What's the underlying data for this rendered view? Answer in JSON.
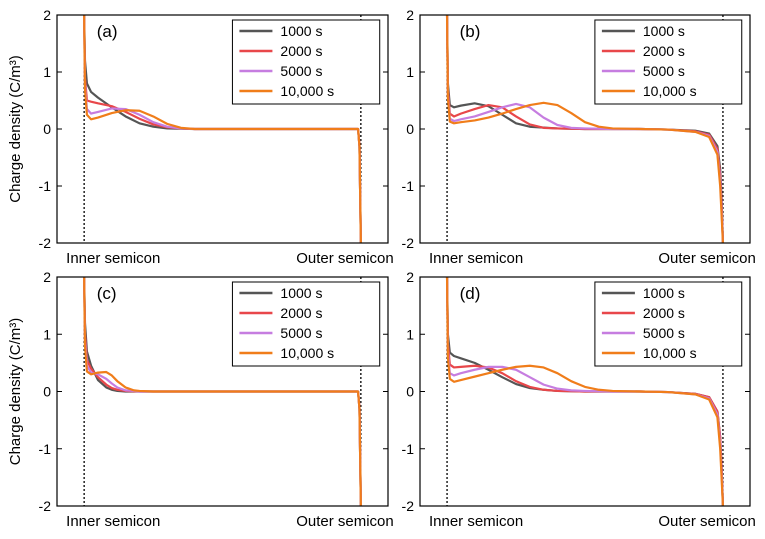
{
  "ylabel": "Charge density (C/m³)",
  "x_ticklabels": [
    "Inner semicon",
    "Outer semicon"
  ],
  "legend": [
    {
      "name": "1000 s",
      "color": "#555555"
    },
    {
      "name": "2000 s",
      "color": "#e8474a"
    },
    {
      "name": "5000 s",
      "color": "#c67de0"
    },
    {
      "name": "10,000 s",
      "color": "#f07d1a"
    }
  ],
  "chart_data": [
    {
      "type": "line",
      "title": "(a)",
      "xlabel": "",
      "ylabel": "Charge density (C/m³)",
      "x_ticklabels": [
        "Inner semicon",
        "Outer semicon"
      ],
      "ylim": [
        -2,
        2
      ],
      "yticks": [
        -2,
        -1,
        0,
        1,
        2
      ],
      "xlim": [
        0,
        1
      ],
      "series": [
        {
          "name": "1000 s",
          "x": [
            0,
            0.003,
            0.01,
            0.025,
            0.05,
            0.1,
            0.15,
            0.2,
            0.25,
            0.3,
            0.4,
            0.5,
            0.6,
            0.7,
            0.8,
            0.9,
            0.96,
            0.99,
            0.995,
            1
          ],
          "y": [
            2,
            1.2,
            0.8,
            0.65,
            0.55,
            0.38,
            0.22,
            0.1,
            0.04,
            0.01,
            0,
            0,
            0,
            0,
            0,
            0,
            0,
            0,
            -0.3,
            -2
          ]
        },
        {
          "name": "2000 s",
          "x": [
            0,
            0.003,
            0.01,
            0.025,
            0.05,
            0.1,
            0.15,
            0.2,
            0.25,
            0.3,
            0.35,
            0.4,
            0.5,
            0.6,
            0.7,
            0.8,
            0.9,
            0.96,
            0.99,
            0.995,
            1
          ],
          "y": [
            2,
            0.9,
            0.5,
            0.48,
            0.45,
            0.4,
            0.3,
            0.18,
            0.08,
            0.03,
            0.01,
            0,
            0,
            0,
            0,
            0,
            0,
            0,
            0,
            -0.3,
            -2
          ]
        },
        {
          "name": "5000 s",
          "x": [
            0,
            0.003,
            0.01,
            0.025,
            0.05,
            0.1,
            0.15,
            0.2,
            0.25,
            0.3,
            0.35,
            0.4,
            0.5,
            0.6,
            0.7,
            0.8,
            0.9,
            0.96,
            0.99,
            0.995,
            1
          ],
          "y": [
            2,
            0.8,
            0.35,
            0.27,
            0.3,
            0.36,
            0.35,
            0.25,
            0.12,
            0.04,
            0.01,
            0,
            0,
            0,
            0,
            0,
            0,
            0,
            0,
            -0.3,
            -2
          ]
        },
        {
          "name": "10,000 s",
          "x": [
            0,
            0.003,
            0.01,
            0.025,
            0.05,
            0.1,
            0.15,
            0.2,
            0.25,
            0.3,
            0.35,
            0.4,
            0.5,
            0.6,
            0.7,
            0.8,
            0.9,
            0.96,
            0.99,
            0.995,
            1
          ],
          "y": [
            2,
            0.7,
            0.25,
            0.17,
            0.2,
            0.28,
            0.33,
            0.32,
            0.22,
            0.09,
            0.02,
            0,
            0,
            0,
            0,
            0,
            0,
            0,
            0,
            -0.3,
            -2
          ]
        }
      ]
    },
    {
      "type": "line",
      "title": "(b)",
      "xlabel": "",
      "ylabel": "",
      "x_ticklabels": [
        "Inner semicon",
        "Outer semicon"
      ],
      "ylim": [
        -2,
        2
      ],
      "yticks": [
        -2,
        -1,
        0,
        1,
        2
      ],
      "xlim": [
        0,
        1
      ],
      "series": [
        {
          "name": "1000 s",
          "x": [
            0,
            0.003,
            0.01,
            0.025,
            0.05,
            0.1,
            0.15,
            0.2,
            0.25,
            0.3,
            0.4,
            0.5,
            0.6,
            0.7,
            0.8,
            0.9,
            0.95,
            0.98,
            0.99,
            0.995,
            1
          ],
          "y": [
            2,
            0.8,
            0.42,
            0.38,
            0.41,
            0.45,
            0.4,
            0.25,
            0.1,
            0.04,
            0.01,
            0,
            0,
            0,
            -0.01,
            -0.03,
            -0.08,
            -0.3,
            -0.7,
            -1.2,
            -2
          ]
        },
        {
          "name": "2000 s",
          "x": [
            0,
            0.003,
            0.01,
            0.025,
            0.05,
            0.1,
            0.15,
            0.2,
            0.25,
            0.3,
            0.35,
            0.4,
            0.5,
            0.6,
            0.7,
            0.8,
            0.9,
            0.95,
            0.98,
            0.99,
            0.995,
            1
          ],
          "y": [
            2,
            0.7,
            0.27,
            0.22,
            0.27,
            0.35,
            0.42,
            0.38,
            0.22,
            0.08,
            0.02,
            0.01,
            0,
            0,
            0,
            -0.01,
            -0.04,
            -0.1,
            -0.35,
            -0.8,
            -1.3,
            -2
          ]
        },
        {
          "name": "5000 s",
          "x": [
            0,
            0.003,
            0.01,
            0.025,
            0.05,
            0.1,
            0.15,
            0.2,
            0.25,
            0.3,
            0.35,
            0.4,
            0.45,
            0.5,
            0.6,
            0.7,
            0.8,
            0.9,
            0.95,
            0.98,
            0.99,
            0.995,
            1
          ],
          "y": [
            2,
            0.6,
            0.18,
            0.14,
            0.17,
            0.22,
            0.3,
            0.38,
            0.44,
            0.38,
            0.2,
            0.07,
            0.02,
            0.01,
            0,
            0,
            -0.01,
            -0.05,
            -0.12,
            -0.4,
            -0.9,
            -1.4,
            -2
          ]
        },
        {
          "name": "10,000 s",
          "x": [
            0,
            0.003,
            0.01,
            0.025,
            0.05,
            0.1,
            0.15,
            0.2,
            0.25,
            0.3,
            0.35,
            0.4,
            0.45,
            0.5,
            0.55,
            0.6,
            0.7,
            0.8,
            0.9,
            0.95,
            0.98,
            0.99,
            0.995,
            1
          ],
          "y": [
            2,
            0.55,
            0.13,
            0.1,
            0.12,
            0.15,
            0.2,
            0.27,
            0.35,
            0.42,
            0.46,
            0.42,
            0.28,
            0.12,
            0.04,
            0.01,
            0,
            -0.01,
            -0.05,
            -0.14,
            -0.45,
            -1.0,
            -1.5,
            -2
          ]
        }
      ]
    },
    {
      "type": "line",
      "title": "(c)",
      "xlabel": "",
      "ylabel": "Charge density (C/m³)",
      "x_ticklabels": [
        "Inner semicon",
        "Outer semicon"
      ],
      "ylim": [
        -2,
        2
      ],
      "yticks": [
        -2,
        -1,
        0,
        1,
        2
      ],
      "xlim": [
        0,
        1
      ],
      "series": [
        {
          "name": "1000 s",
          "x": [
            0,
            0.003,
            0.01,
            0.025,
            0.05,
            0.08,
            0.1,
            0.12,
            0.15,
            0.2,
            0.3,
            0.5,
            0.7,
            0.9,
            0.99,
            0.995,
            1
          ],
          "y": [
            2,
            1.2,
            0.7,
            0.45,
            0.2,
            0.07,
            0.03,
            0.01,
            0,
            0,
            0,
            0,
            0,
            0,
            0,
            -0.3,
            -2
          ]
        },
        {
          "name": "2000 s",
          "x": [
            0,
            0.003,
            0.01,
            0.025,
            0.05,
            0.08,
            0.1,
            0.12,
            0.15,
            0.2,
            0.3,
            0.5,
            0.7,
            0.9,
            0.99,
            0.995,
            1
          ],
          "y": [
            2,
            1.0,
            0.55,
            0.4,
            0.25,
            0.12,
            0.06,
            0.03,
            0.01,
            0,
            0,
            0,
            0,
            0,
            0,
            -0.3,
            -2
          ]
        },
        {
          "name": "5000 s",
          "x": [
            0,
            0.003,
            0.01,
            0.025,
            0.05,
            0.08,
            0.1,
            0.12,
            0.15,
            0.18,
            0.2,
            0.3,
            0.5,
            0.7,
            0.9,
            0.99,
            0.995,
            1
          ],
          "y": [
            2,
            0.9,
            0.45,
            0.33,
            0.3,
            0.22,
            0.14,
            0.07,
            0.02,
            0.01,
            0,
            0,
            0,
            0,
            0,
            0,
            -0.3,
            -2
          ]
        },
        {
          "name": "10,000 s",
          "x": [
            0,
            0.003,
            0.01,
            0.025,
            0.05,
            0.08,
            0.1,
            0.12,
            0.15,
            0.18,
            0.2,
            0.25,
            0.3,
            0.5,
            0.7,
            0.9,
            0.99,
            0.995,
            1
          ],
          "y": [
            2,
            0.8,
            0.35,
            0.3,
            0.33,
            0.34,
            0.28,
            0.18,
            0.07,
            0.02,
            0.01,
            0,
            0,
            0,
            0,
            0,
            0,
            -0.3,
            -2
          ]
        }
      ]
    },
    {
      "type": "line",
      "title": "(d)",
      "xlabel": "",
      "ylabel": "",
      "x_ticklabels": [
        "Inner semicon",
        "Outer semicon"
      ],
      "ylim": [
        -2,
        2
      ],
      "yticks": [
        -2,
        -1,
        0,
        1,
        2
      ],
      "xlim": [
        0,
        1
      ],
      "series": [
        {
          "name": "1000 s",
          "x": [
            0,
            0.003,
            0.01,
            0.025,
            0.05,
            0.1,
            0.15,
            0.2,
            0.25,
            0.3,
            0.35,
            0.4,
            0.5,
            0.6,
            0.7,
            0.8,
            0.9,
            0.95,
            0.98,
            0.99,
            0.995,
            1
          ],
          "y": [
            2,
            1.0,
            0.68,
            0.62,
            0.58,
            0.5,
            0.38,
            0.25,
            0.13,
            0.06,
            0.03,
            0.01,
            0,
            0,
            0,
            -0.01,
            -0.04,
            -0.1,
            -0.35,
            -0.8,
            -1.3,
            -2
          ]
        },
        {
          "name": "2000 s",
          "x": [
            0,
            0.003,
            0.01,
            0.025,
            0.05,
            0.1,
            0.15,
            0.2,
            0.25,
            0.3,
            0.35,
            0.4,
            0.5,
            0.6,
            0.7,
            0.8,
            0.9,
            0.95,
            0.98,
            0.99,
            0.995,
            1
          ],
          "y": [
            2,
            0.85,
            0.47,
            0.42,
            0.43,
            0.45,
            0.42,
            0.32,
            0.18,
            0.08,
            0.03,
            0.01,
            0,
            0,
            0,
            -0.01,
            -0.04,
            -0.1,
            -0.35,
            -0.8,
            -1.3,
            -2
          ]
        },
        {
          "name": "5000 s",
          "x": [
            0,
            0.003,
            0.01,
            0.025,
            0.05,
            0.1,
            0.15,
            0.2,
            0.25,
            0.3,
            0.35,
            0.4,
            0.45,
            0.5,
            0.6,
            0.7,
            0.8,
            0.9,
            0.95,
            0.98,
            0.99,
            0.995,
            1
          ],
          "y": [
            2,
            0.7,
            0.32,
            0.28,
            0.32,
            0.38,
            0.43,
            0.43,
            0.38,
            0.25,
            0.12,
            0.05,
            0.02,
            0.01,
            0,
            0,
            -0.01,
            -0.05,
            -0.12,
            -0.4,
            -0.9,
            -1.4,
            -2
          ]
        },
        {
          "name": "10,000 s",
          "x": [
            0,
            0.003,
            0.01,
            0.025,
            0.05,
            0.1,
            0.15,
            0.2,
            0.25,
            0.3,
            0.35,
            0.4,
            0.45,
            0.5,
            0.55,
            0.6,
            0.7,
            0.8,
            0.9,
            0.95,
            0.98,
            0.99,
            0.995,
            1
          ],
          "y": [
            2,
            0.6,
            0.22,
            0.17,
            0.2,
            0.26,
            0.32,
            0.38,
            0.43,
            0.45,
            0.42,
            0.32,
            0.18,
            0.08,
            0.03,
            0.01,
            0,
            -0.01,
            -0.05,
            -0.14,
            -0.45,
            -1.0,
            -1.5,
            -2
          ]
        }
      ]
    }
  ]
}
